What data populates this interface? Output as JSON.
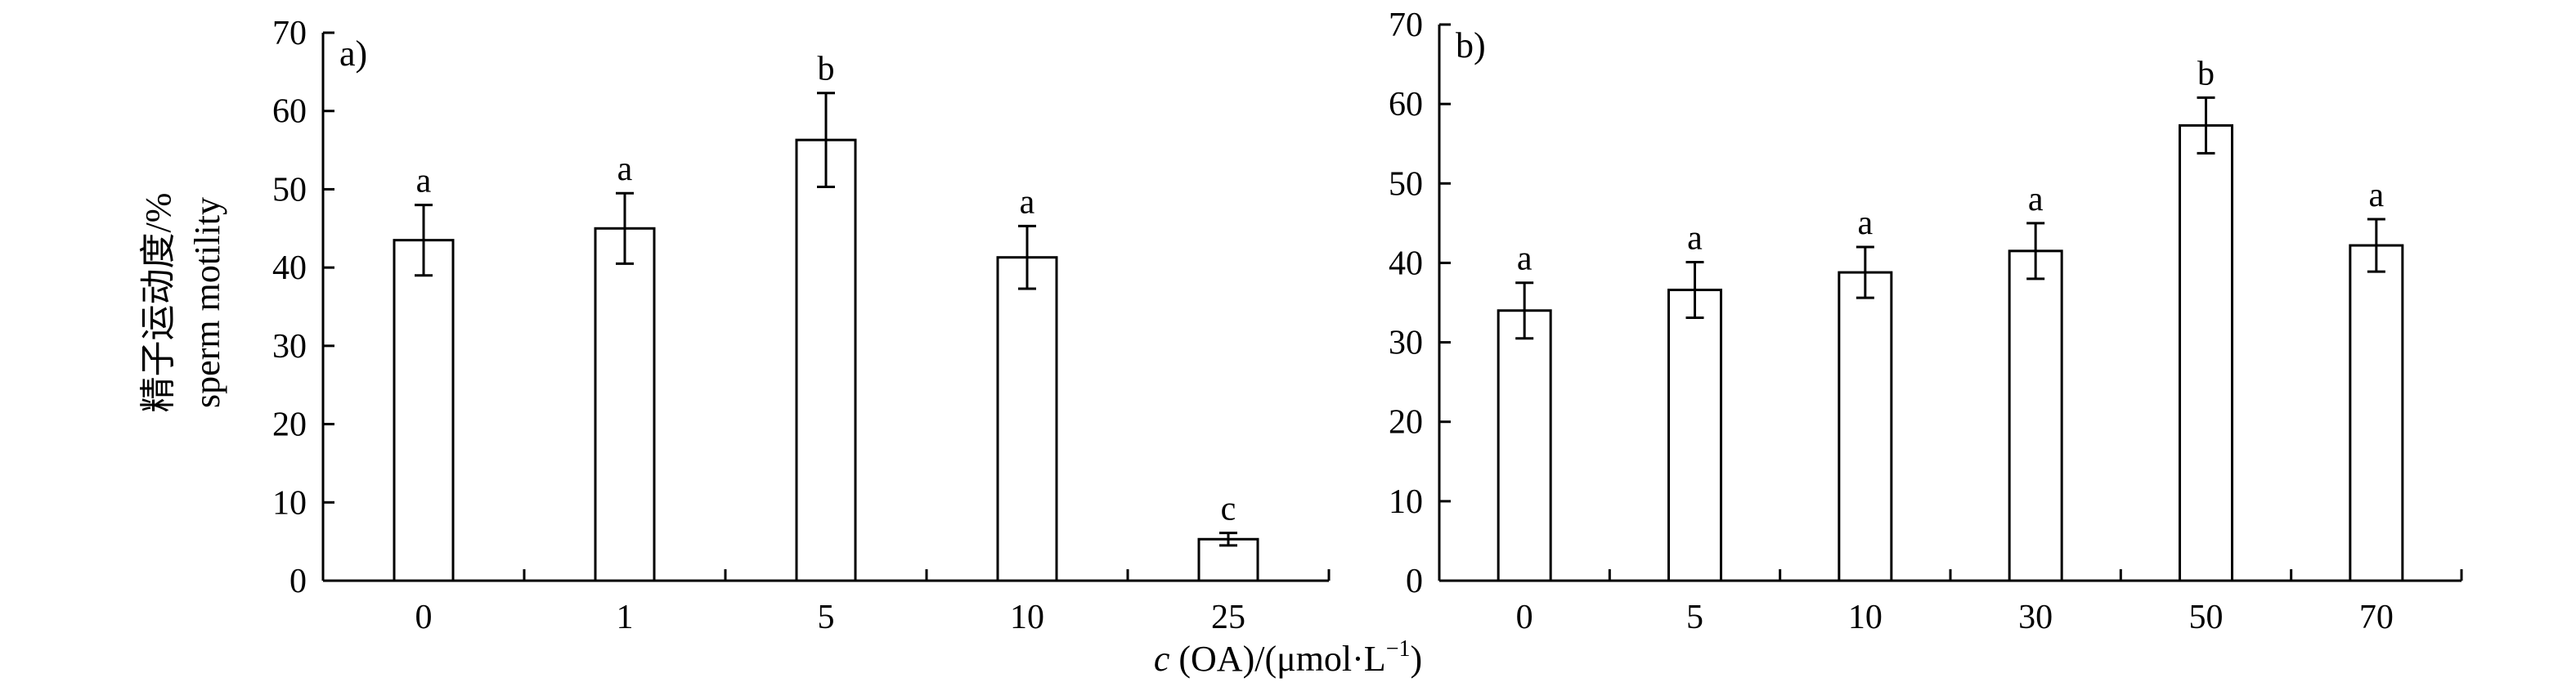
{
  "figure": {
    "xlabel_italic": "c",
    "xlabel_rest": " (OA)/(μmol·L",
    "xlabel_sup": "−1",
    "xlabel_close": ")",
    "ylabel_cn": "精子运动度/%",
    "ylabel_en": "sperm motility"
  },
  "chart_data": [
    {
      "type": "bar",
      "panel_label": "a)",
      "categories": [
        "0",
        "1",
        "5",
        "10",
        "25"
      ],
      "values": [
        43.5,
        45,
        56.3,
        41.3,
        5.3
      ],
      "errors": [
        4.5,
        4.5,
        6,
        4,
        0.8
      ],
      "significance": [
        "a",
        "a",
        "b",
        "a",
        "c"
      ],
      "ylim": [
        0,
        70
      ],
      "yticks": [
        0,
        10,
        20,
        30,
        40,
        50,
        60,
        70
      ],
      "grid": false,
      "xlabel": "c (OA)/(μmol·L⁻¹)",
      "ylabel": "精子运动度/% sperm motility"
    },
    {
      "type": "bar",
      "panel_label": "b)",
      "categories": [
        "0",
        "5",
        "10",
        "30",
        "50",
        "70"
      ],
      "values": [
        34,
        36.6,
        38.8,
        41.5,
        57.3,
        42.2
      ],
      "errors": [
        3.5,
        3.5,
        3.2,
        3.5,
        3.5,
        3.3
      ],
      "significance": [
        "a",
        "a",
        "a",
        "a",
        "b",
        "a"
      ],
      "ylim": [
        0,
        70
      ],
      "yticks": [
        0,
        10,
        20,
        30,
        40,
        50,
        60,
        70
      ],
      "grid": false
    }
  ]
}
